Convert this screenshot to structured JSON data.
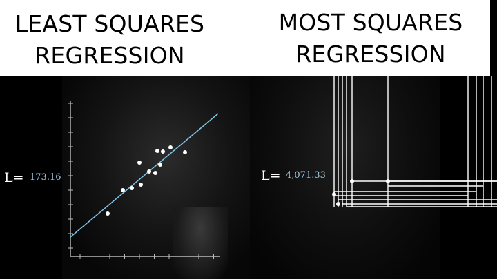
{
  "titles": {
    "left": [
      "LEAST SQUARES",
      "REGRESSION"
    ],
    "right": [
      "MOST SQUARES",
      "REGRESSION"
    ]
  },
  "left_panel": {
    "loss_label": "L=",
    "loss_value": "173.16"
  },
  "right_panel": {
    "loss_label": "L=",
    "loss_value": "4,071.33"
  },
  "colors": {
    "fit_line": "#7fc4e6",
    "points": "#ffffff",
    "loss_value": "#9fc4dc"
  }
}
